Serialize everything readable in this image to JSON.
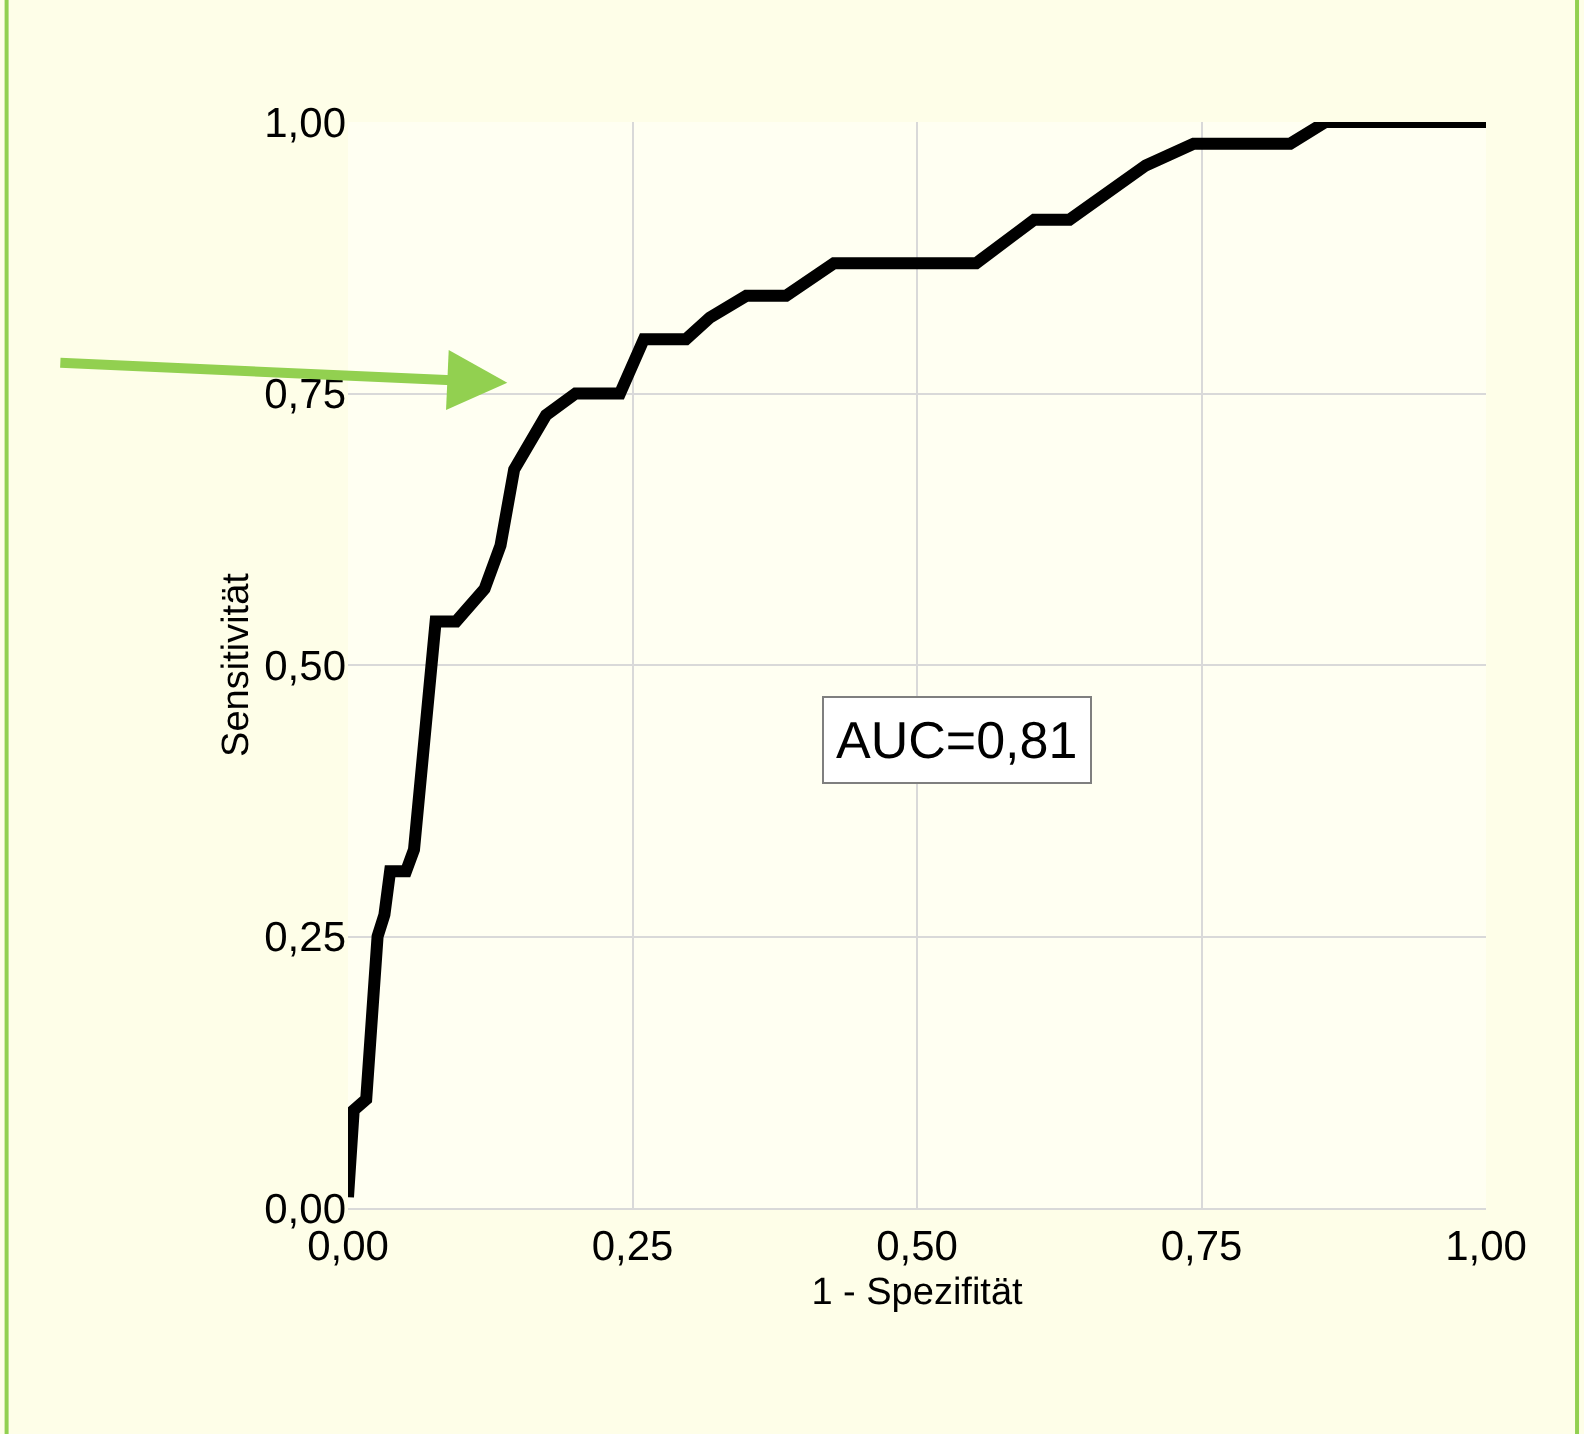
{
  "chart_data": {
    "type": "line",
    "xlabel": "1 - Spezifität",
    "ylabel": "Sensitivität",
    "annotations": [
      "AUC=0,81"
    ],
    "x": [
      0,
      0.005,
      0.016,
      0.026,
      0.032,
      0.037,
      0.051,
      0.058,
      0.077,
      0.095,
      0.12,
      0.134,
      0.146,
      0.174,
      0.2,
      0.239,
      0.26,
      0.297,
      0.318,
      0.35,
      0.385,
      0.427,
      0.552,
      0.603,
      0.634,
      0.701,
      0.743,
      0.828,
      0.859,
      1
    ],
    "series": [
      {
        "color": "#000000",
        "values": [
          0.01,
          0.09,
          0.1,
          0.25,
          0.27,
          0.31,
          0.31,
          0.33,
          0.54,
          0.54,
          0.57,
          0.61,
          0.68,
          0.73,
          0.75,
          0.75,
          0.8,
          0.8,
          0.82,
          0.84,
          0.84,
          0.87,
          0.87,
          0.91,
          0.91,
          0.96,
          0.98,
          0.98,
          1,
          1
        ]
      }
    ],
    "xlim": [
      0,
      1
    ],
    "ylim": [
      0,
      1
    ],
    "xticks": [
      {
        "value": 0,
        "label": "0,00"
      },
      {
        "value": 0.25,
        "label": "0,25"
      },
      {
        "value": 0.5,
        "label": "0,50"
      },
      {
        "value": 0.75,
        "label": "0,75"
      },
      {
        "value": 1,
        "label": "1,00"
      }
    ],
    "yticks": [
      {
        "value": 0,
        "label": "0,00"
      },
      {
        "value": 0.25,
        "label": "0,25"
      },
      {
        "value": 0.5,
        "label": "0,50"
      },
      {
        "value": 0.75,
        "label": "0,75"
      },
      {
        "value": 1,
        "label": "1,00"
      }
    ],
    "grid": true,
    "marker": "none",
    "line_style": "solid"
  }
}
